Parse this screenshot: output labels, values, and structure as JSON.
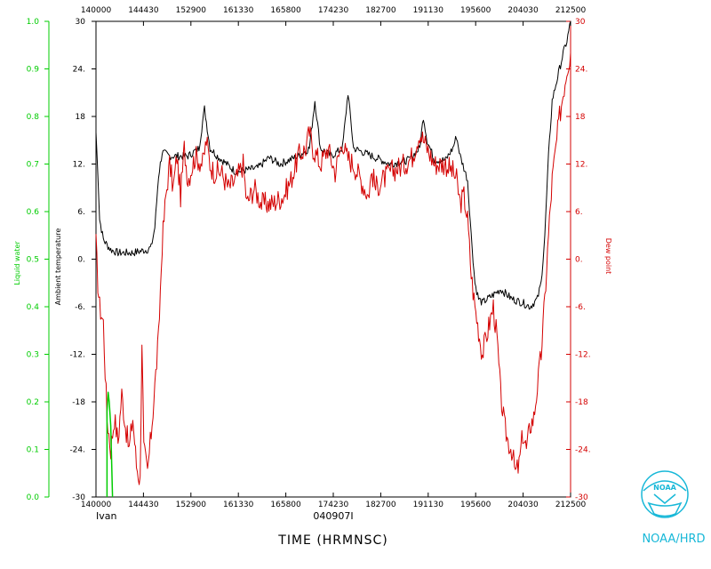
{
  "chart_data": {
    "type": "line",
    "xlabel": "TIME (HRMNSC)",
    "x_ticks": [
      "140000",
      "144430",
      "152900",
      "161330",
      "165800",
      "174230",
      "182700",
      "191130",
      "195600",
      "204030",
      "212500"
    ],
    "flight_label": "Ivan",
    "date_label": "040907I",
    "axes": {
      "liquid_water": {
        "label": "Liquid water",
        "ylim": [
          0.0,
          1.0
        ],
        "ticks": [
          "0.0",
          "0.1",
          "0.2",
          "0.3",
          "0.4",
          "0.5",
          "0.6",
          "0.7",
          "0.8",
          "0.9",
          "1.0"
        ],
        "color": "#00cc00"
      },
      "ambient_temperature": {
        "label": "Ambient temperature",
        "ylim": [
          -30,
          30
        ],
        "ticks": [
          "-30",
          "-24.",
          "-18",
          "-12.",
          "-6.",
          "0.",
          "6.",
          "12.",
          "18",
          "24.",
          "30"
        ],
        "color": "#000000"
      },
      "dew_point": {
        "label": "Dew point",
        "ylim": [
          -30,
          30
        ],
        "ticks": [
          "-30",
          "-24.",
          "-18",
          "-12.",
          "-6.",
          "0.",
          "6.",
          "12.",
          "18",
          "24.",
          "30"
        ],
        "color": "#d40000"
      }
    },
    "series": [
      {
        "name": "Ambient temperature",
        "color": "#000000",
        "points": [
          [
            0,
            16
          ],
          [
            0.5,
            11
          ],
          [
            1,
            5
          ],
          [
            2,
            2.5
          ],
          [
            3,
            1.8
          ],
          [
            4,
            1.2
          ],
          [
            6,
            0.8
          ],
          [
            10,
            0.8
          ],
          [
            14,
            1.2
          ],
          [
            15,
            1.5
          ],
          [
            16,
            4
          ],
          [
            17,
            10.5
          ],
          [
            18,
            13.5
          ],
          [
            20,
            13
          ],
          [
            25,
            13
          ],
          [
            28,
            14
          ],
          [
            29.5,
            19
          ],
          [
            31,
            14
          ],
          [
            33,
            13
          ],
          [
            38,
            11
          ],
          [
            44,
            11.5
          ],
          [
            47,
            12.8
          ],
          [
            50,
            12
          ],
          [
            55,
            13
          ],
          [
            58,
            14
          ],
          [
            59.5,
            20
          ],
          [
            61,
            14
          ],
          [
            64,
            13
          ],
          [
            67,
            14
          ],
          [
            68.5,
            21
          ],
          [
            70,
            14
          ],
          [
            75,
            13
          ],
          [
            80,
            12
          ],
          [
            85,
            12.5
          ],
          [
            88,
            14
          ],
          [
            89,
            18
          ],
          [
            90,
            15
          ],
          [
            92,
            12.5
          ],
          [
            95,
            12.5
          ],
          [
            97,
            14
          ],
          [
            98,
            15.5
          ],
          [
            99,
            13
          ],
          [
            101,
            10
          ],
          [
            102,
            3
          ],
          [
            103,
            -3
          ],
          [
            104,
            -5
          ],
          [
            105,
            -5.5
          ],
          [
            108,
            -4.5
          ],
          [
            110,
            -3.8
          ],
          [
            113,
            -5
          ],
          [
            116,
            -5.5
          ],
          [
            118,
            -6
          ],
          [
            120,
            -5
          ],
          [
            121,
            -3
          ],
          [
            122,
            3
          ],
          [
            123,
            13
          ],
          [
            124,
            20
          ],
          [
            125,
            22
          ],
          [
            126,
            24
          ],
          [
            127,
            26
          ],
          [
            128,
            27.5
          ],
          [
            129,
            30
          ]
        ]
      },
      {
        "name": "Dew point",
        "color": "#d40000",
        "points": [
          [
            0,
            2
          ],
          [
            0.5,
            -3
          ],
          [
            1,
            -6
          ],
          [
            2,
            -8
          ],
          [
            2.5,
            -14
          ],
          [
            3,
            -20
          ],
          [
            4,
            -24
          ],
          [
            5,
            -20
          ],
          [
            6,
            -23
          ],
          [
            7,
            -17
          ],
          [
            8,
            -21
          ],
          [
            9,
            -24
          ],
          [
            10,
            -20
          ],
          [
            11,
            -26
          ],
          [
            12,
            -28
          ],
          [
            12.5,
            -10
          ],
          [
            13,
            -24
          ],
          [
            14,
            -27
          ],
          [
            15,
            -22
          ],
          [
            16,
            -16
          ],
          [
            17,
            -10
          ],
          [
            18,
            2
          ],
          [
            19,
            8
          ],
          [
            20,
            12
          ],
          [
            21,
            9
          ],
          [
            22,
            13
          ],
          [
            23,
            8
          ],
          [
            24,
            14
          ],
          [
            25,
            10
          ],
          [
            27,
            13
          ],
          [
            29,
            12
          ],
          [
            30,
            15
          ],
          [
            31,
            12
          ],
          [
            32,
            11
          ],
          [
            34,
            11
          ],
          [
            36,
            9
          ],
          [
            38,
            10
          ],
          [
            40,
            12
          ],
          [
            41,
            7
          ],
          [
            42,
            8
          ],
          [
            43,
            9
          ],
          [
            45,
            7
          ],
          [
            48,
            7
          ],
          [
            51,
            8
          ],
          [
            53,
            10
          ],
          [
            55,
            13
          ],
          [
            57,
            14
          ],
          [
            58,
            16
          ],
          [
            59,
            14
          ],
          [
            61,
            12
          ],
          [
            63,
            14
          ],
          [
            65,
            11
          ],
          [
            67,
            15
          ],
          [
            68,
            13
          ],
          [
            70,
            12
          ],
          [
            72,
            10
          ],
          [
            74,
            8
          ],
          [
            75,
            11
          ],
          [
            76,
            9
          ],
          [
            78,
            10
          ],
          [
            80,
            11
          ],
          [
            82,
            11.5
          ],
          [
            84,
            12
          ],
          [
            86,
            13
          ],
          [
            88,
            16
          ],
          [
            90,
            14
          ],
          [
            92,
            12
          ],
          [
            95,
            12
          ],
          [
            97,
            11
          ],
          [
            98,
            10
          ],
          [
            99,
            7
          ],
          [
            100,
            8
          ],
          [
            101,
            5
          ],
          [
            102,
            -2
          ],
          [
            103,
            -6
          ],
          [
            104,
            -9
          ],
          [
            105,
            -12
          ],
          [
            106,
            -10
          ],
          [
            107,
            -8
          ],
          [
            108,
            -6
          ],
          [
            109,
            -10
          ],
          [
            110,
            -17
          ],
          [
            111,
            -21
          ],
          [
            112,
            -23
          ],
          [
            113,
            -24
          ],
          [
            114,
            -27
          ],
          [
            115,
            -26
          ],
          [
            116,
            -22
          ],
          [
            117,
            -24
          ],
          [
            118,
            -21
          ],
          [
            119,
            -20
          ],
          [
            120,
            -16
          ],
          [
            121,
            -12
          ],
          [
            122,
            -5
          ],
          [
            123,
            3
          ],
          [
            124,
            10
          ],
          [
            125,
            14
          ],
          [
            126,
            18
          ],
          [
            127,
            21
          ],
          [
            128,
            24
          ],
          [
            129,
            26
          ]
        ]
      },
      {
        "name": "Liquid water",
        "color": "#00cc00",
        "points": [
          [
            3,
            0.0
          ],
          [
            3,
            0.18
          ],
          [
            3.3,
            0.22
          ],
          [
            3.6,
            0.2
          ],
          [
            4,
            0.15
          ],
          [
            4.5,
            0.0
          ]
        ]
      }
    ],
    "x_range": [
      0,
      129
    ]
  },
  "branding": {
    "logo_text": "NOAA",
    "caption": "NOAA/HRD"
  }
}
